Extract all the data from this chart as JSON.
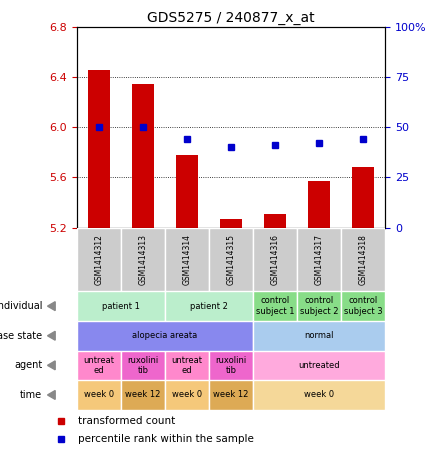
{
  "title": "GDS5275 / 240877_x_at",
  "samples": [
    "GSM1414312",
    "GSM1414313",
    "GSM1414314",
    "GSM1414315",
    "GSM1414316",
    "GSM1414317",
    "GSM1414318"
  ],
  "bar_values": [
    6.46,
    6.35,
    5.78,
    5.27,
    5.31,
    5.57,
    5.68
  ],
  "dot_values": [
    50,
    50,
    44,
    40,
    41,
    42,
    44
  ],
  "ylim": [
    5.2,
    6.8
  ],
  "yticks": [
    5.2,
    5.6,
    6.0,
    6.4,
    6.8
  ],
  "y2lim": [
    0,
    100
  ],
  "y2ticks_vals": [
    0,
    25,
    50,
    75,
    100
  ],
  "y2ticks_labels": [
    "0",
    "25",
    "50",
    "75",
    "100%"
  ],
  "bar_color": "#cc0000",
  "dot_color": "#0000cc",
  "bar_bottom": 5.2,
  "sample_box_color": "#cccccc",
  "metadata_rows": [
    {
      "label": "individual",
      "cells": [
        {
          "text": "patient 1",
          "span": 2,
          "color": "#bbeecc"
        },
        {
          "text": "patient 2",
          "span": 2,
          "color": "#bbeecc"
        },
        {
          "text": "control\nsubject 1",
          "span": 1,
          "color": "#88dd88"
        },
        {
          "text": "control\nsubject 2",
          "span": 1,
          "color": "#88dd88"
        },
        {
          "text": "control\nsubject 3",
          "span": 1,
          "color": "#88dd88"
        }
      ]
    },
    {
      "label": "disease state",
      "cells": [
        {
          "text": "alopecia areata",
          "span": 4,
          "color": "#8888ee"
        },
        {
          "text": "normal",
          "span": 3,
          "color": "#aaccee"
        }
      ]
    },
    {
      "label": "agent",
      "cells": [
        {
          "text": "untreat\ned",
          "span": 1,
          "color": "#ff88cc"
        },
        {
          "text": "ruxolini\ntib",
          "span": 1,
          "color": "#ee66cc"
        },
        {
          "text": "untreat\ned",
          "span": 1,
          "color": "#ff88cc"
        },
        {
          "text": "ruxolini\ntib",
          "span": 1,
          "color": "#ee66cc"
        },
        {
          "text": "untreated",
          "span": 3,
          "color": "#ffaadd"
        }
      ]
    },
    {
      "label": "time",
      "cells": [
        {
          "text": "week 0",
          "span": 1,
          "color": "#f5c87a"
        },
        {
          "text": "week 12",
          "span": 1,
          "color": "#ddaa55"
        },
        {
          "text": "week 0",
          "span": 1,
          "color": "#f5c87a"
        },
        {
          "text": "week 12",
          "span": 1,
          "color": "#ddaa55"
        },
        {
          "text": "week 0",
          "span": 3,
          "color": "#f5d899"
        }
      ]
    }
  ],
  "legend_items": [
    {
      "color": "#cc0000",
      "label": "transformed count"
    },
    {
      "color": "#0000cc",
      "label": "percentile rank within the sample"
    }
  ],
  "fig_width": 4.38,
  "fig_height": 4.53,
  "dpi": 100
}
